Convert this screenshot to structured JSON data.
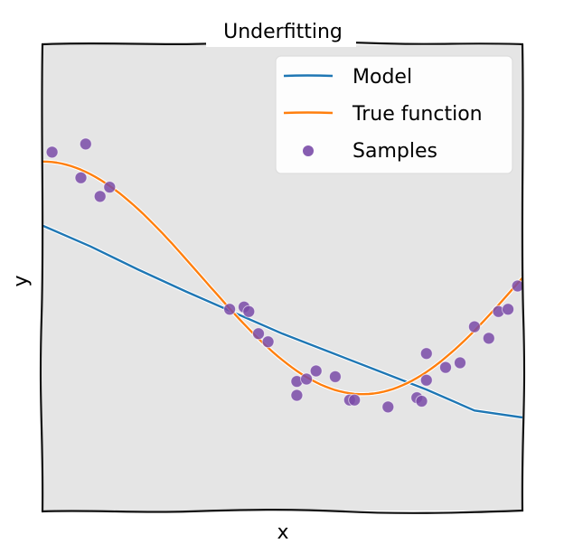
{
  "chart_data": {
    "type": "scatter+line",
    "title": "Underfitting",
    "xlabel": "x",
    "ylabel": "y",
    "xlim": [
      0,
      1
    ],
    "ylim": [
      -2,
      2
    ],
    "grid": false,
    "ticks": "none",
    "style": "xkcd",
    "legend": {
      "position": "upper right",
      "entries": [
        "Model",
        "True function",
        "Samples"
      ]
    },
    "colors": {
      "model": "#1f77b4",
      "true_function": "#ff7f0e",
      "samples": "#7a4ba8",
      "axes_bg": "#e5e5e5"
    },
    "series": [
      {
        "name": "Model",
        "kind": "line",
        "x": [
          0,
          0.1,
          0.2,
          0.3,
          0.4,
          0.5,
          0.6,
          0.7,
          0.8,
          0.9,
          1.0
        ],
        "y": [
          0.45,
          0.27,
          0.07,
          -0.12,
          -0.3,
          -0.48,
          -0.64,
          -0.8,
          -0.96,
          -1.14,
          -1.2
        ]
      },
      {
        "name": "True function",
        "kind": "line",
        "formula": "cos(1.5*pi*x)",
        "x": [
          0,
          0.1,
          0.2,
          0.3,
          0.4,
          0.5,
          0.6,
          0.667,
          0.7,
          0.8,
          0.9,
          1.0
        ],
        "y": [
          1.0,
          0.89,
          0.59,
          0.16,
          -0.31,
          -0.71,
          -0.95,
          -1.0,
          -0.99,
          -0.81,
          -0.45,
          0.0
        ]
      },
      {
        "name": "Samples",
        "kind": "scatter",
        "x": [
          0.02,
          0.09,
          0.08,
          0.12,
          0.14,
          0.39,
          0.42,
          0.43,
          0.45,
          0.47,
          0.53,
          0.53,
          0.55,
          0.57,
          0.61,
          0.64,
          0.65,
          0.72,
          0.78,
          0.79,
          0.8,
          0.8,
          0.84,
          0.87,
          0.9,
          0.93,
          0.95,
          0.97,
          0.99
        ],
        "y": [
          1.08,
          1.15,
          0.86,
          0.7,
          0.78,
          -0.27,
          -0.25,
          -0.29,
          -0.48,
          -0.55,
          -0.89,
          -1.01,
          -0.87,
          -0.8,
          -0.85,
          -1.05,
          -1.05,
          -1.11,
          -1.03,
          -1.06,
          -0.65,
          -0.88,
          -0.77,
          -0.73,
          -0.42,
          -0.52,
          -0.29,
          -0.27,
          -0.07
        ]
      }
    ]
  }
}
